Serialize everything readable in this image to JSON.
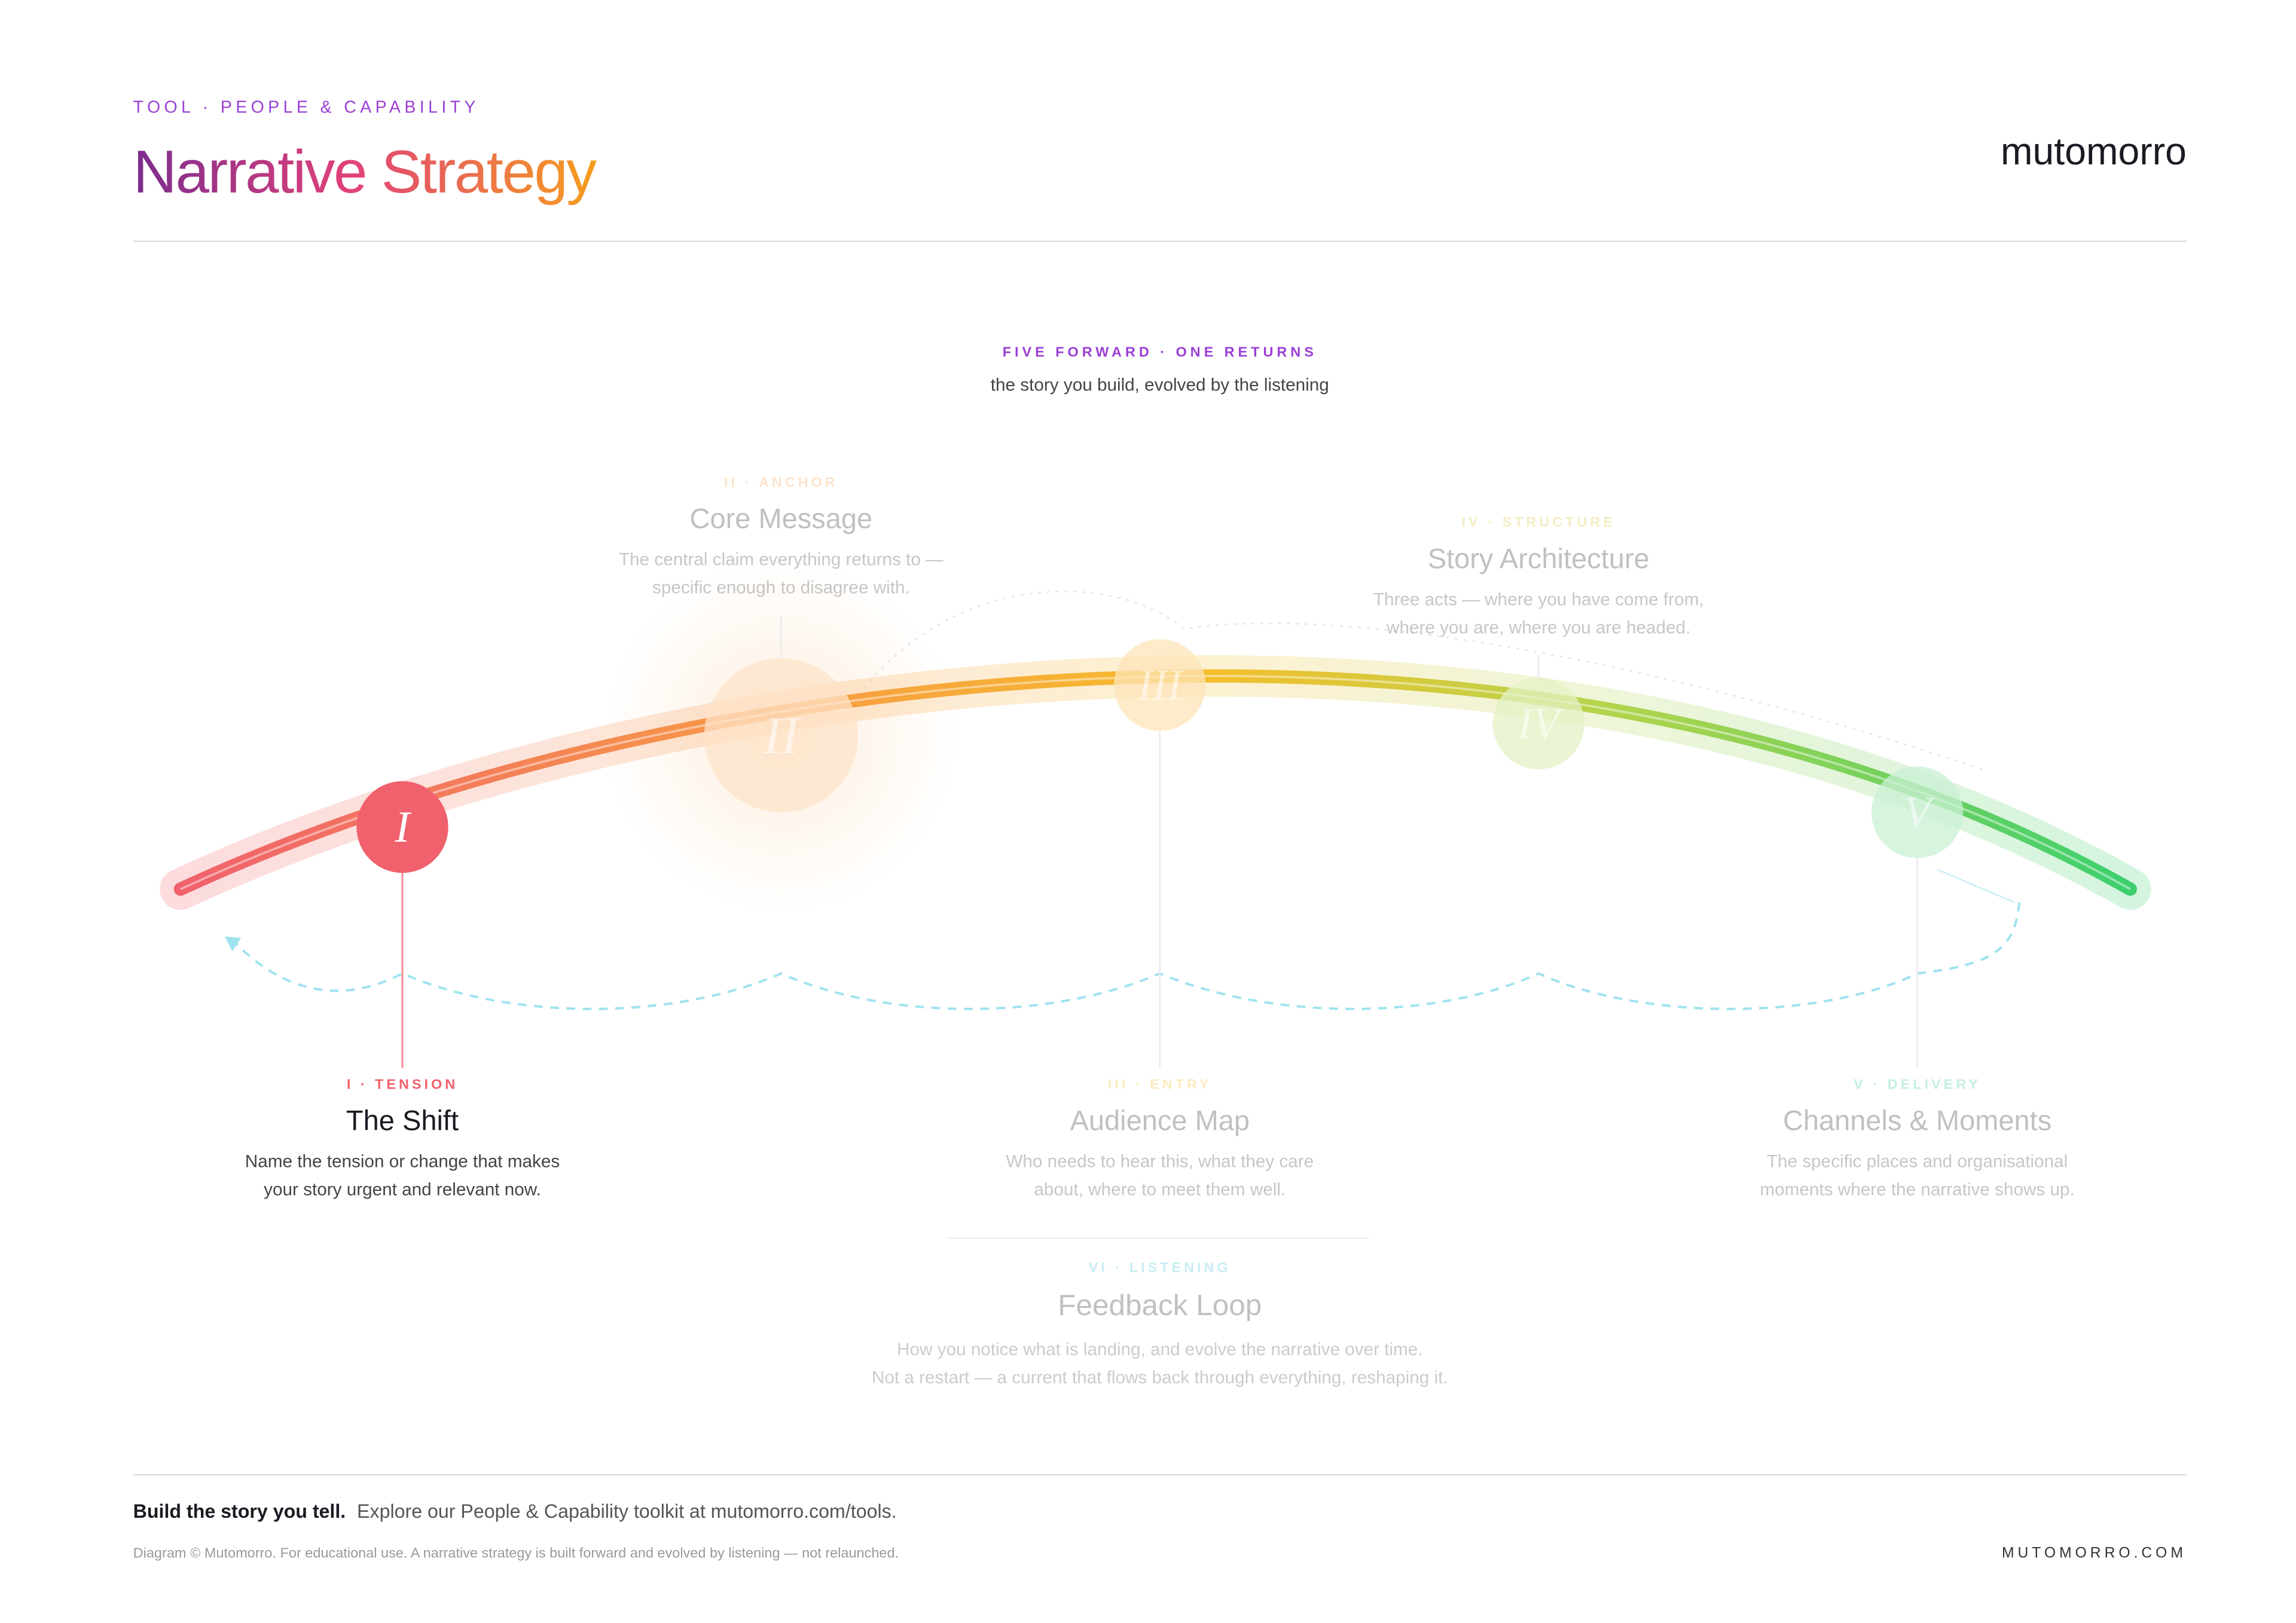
{
  "header": {
    "kicker": "TOOL · PEOPLE & CAPABILITY",
    "title": "Narrative Strategy",
    "brand": "mutomorro"
  },
  "intro": {
    "kicker": "FIVE FORWARD · ONE RETURNS",
    "subtitle": "the story you build, evolved by the listening"
  },
  "stages": [
    {
      "numeral": "I",
      "label": "I · TENSION",
      "title": "The Shift",
      "description": [
        "Name the tension or change that makes",
        "your story urgent and relevant now."
      ]
    },
    {
      "numeral": "II",
      "label": "II · ANCHOR",
      "title": "Core Message",
      "description": [
        "The central claim everything returns to —",
        "specific enough to disagree with."
      ]
    },
    {
      "numeral": "III",
      "label": "III · ENTRY",
      "title": "Audience Map",
      "description": [
        "Who needs to hear this, what they care",
        "about, where to meet them well."
      ]
    },
    {
      "numeral": "IV",
      "label": "IV · STRUCTURE",
      "title": "Story Architecture",
      "description": [
        "Three acts — where you have come from,",
        "where you are, where you are headed."
      ]
    },
    {
      "numeral": "V",
      "label": "V · DELIVERY",
      "title": "Channels & Moments",
      "description": [
        "The specific places and organisational",
        "moments where the narrative shows up."
      ]
    }
  ],
  "feedback": {
    "label": "VI · LISTENING",
    "title": "Feedback Loop",
    "description": [
      "How you notice what is landing, and evolve the narrative over time.",
      "Not a restart — a current that flows back through everything, reshaping it."
    ]
  },
  "footer": {
    "lead": "Build the story you tell.",
    "text": "Explore our People & Capability toolkit at mutomorro.com/tools.",
    "note": "Diagram © Mutomorro. For educational use. A narrative strategy is built forward and evolved by listening — not relaunched.",
    "site": "MUTOMORRO.COM"
  }
}
